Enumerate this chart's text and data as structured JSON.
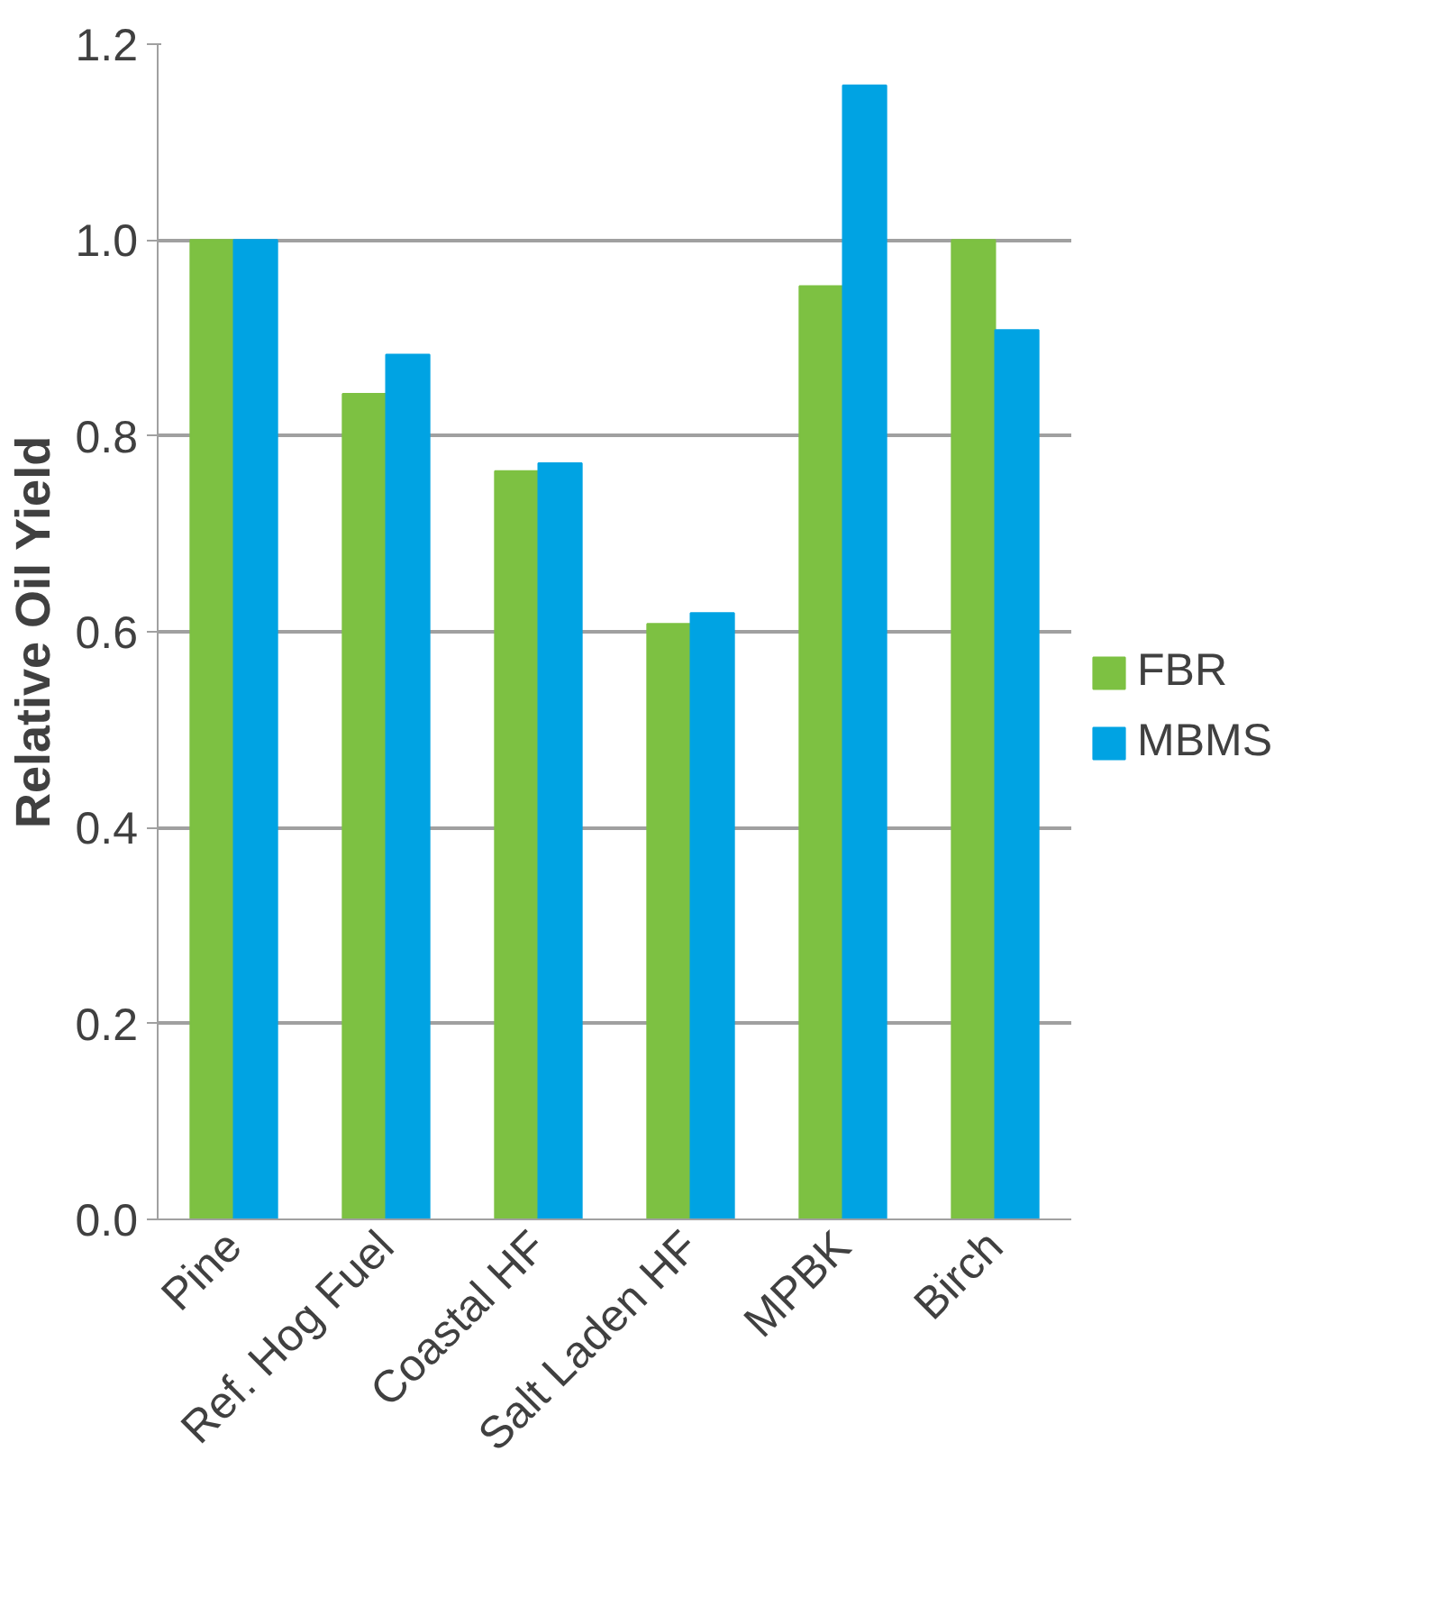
{
  "chart_data": {
    "type": "bar",
    "ylabel": "Relative Oil Yield",
    "categories": [
      "Pine",
      "Ref. Hog Fuel",
      "Coastal HF",
      "Salt Laden HF",
      "MPBK",
      "Birch"
    ],
    "series": [
      {
        "name": "FBR",
        "color": "#7dc142",
        "values": [
          1.0,
          0.843,
          0.764,
          0.608,
          0.953,
          1.0
        ]
      },
      {
        "name": "MBMS",
        "color": "#00a3e3",
        "values": [
          1.0,
          0.883,
          0.772,
          0.619,
          1.158,
          0.908
        ]
      }
    ],
    "ylim": [
      0,
      1.2
    ],
    "yticks": [
      {
        "value": 0,
        "label": "0.0"
      },
      {
        "value": 0.2,
        "label": "0.2"
      },
      {
        "value": 0.4,
        "label": "0.4"
      },
      {
        "value": 0.6,
        "label": "0.6"
      },
      {
        "value": 0.8,
        "label": "0.8"
      },
      {
        "value": 1.0,
        "label": "1.0"
      },
      {
        "value": 1.2,
        "label": "1.2"
      }
    ],
    "grid": "y",
    "legend": "right"
  }
}
